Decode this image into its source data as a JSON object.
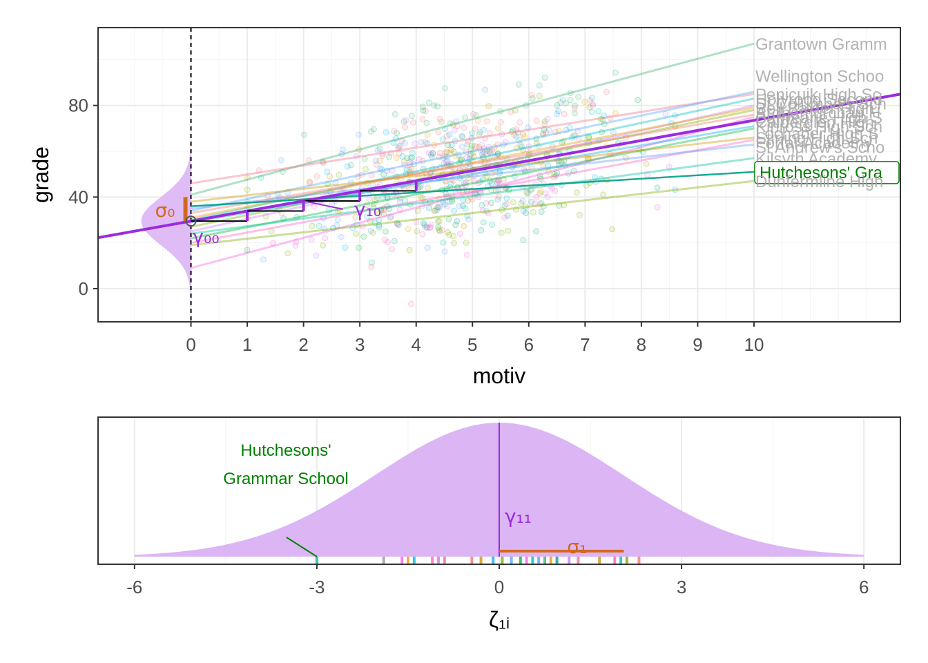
{
  "chart_data": [
    {
      "type": "scatter",
      "xlabel": "motiv",
      "ylabel": "grade",
      "xlim": [
        -1.65,
        12.6
      ],
      "ylim": [
        -14.5,
        114
      ],
      "x_ticks": [
        0,
        1,
        2,
        3,
        4,
        5,
        6,
        7,
        8,
        9,
        10
      ],
      "x_tick_labels": [
        "0",
        "1",
        "2",
        "3",
        "4",
        "5",
        "6",
        "7",
        "8",
        "9",
        "10"
      ],
      "y_ticks": [
        0,
        40,
        80
      ],
      "y_tick_labels": [
        "0",
        "40",
        "80"
      ],
      "grid": true,
      "fixed_line": {
        "intercept": 29.5,
        "slope": 4.4,
        "color": "#9a2be0"
      },
      "intercept_density": {
        "mean": 29.5,
        "sd": 10.5,
        "color": "#dcb5f5"
      },
      "school_lines": [
        {
          "intercept": 41,
          "slope": 6.6,
          "color": "#3cb371",
          "label": "Grantown Grammar School",
          "label_y": 107
        },
        {
          "intercept": 46,
          "slope": 3.9,
          "color": "#f0738a",
          "label": "Wellington School",
          "label_y": 93
        },
        {
          "intercept": 34,
          "slope": 5.2,
          "color": "#4fa8ff",
          "label": "Penicuik High School",
          "label_y": 85
        },
        {
          "intercept": 30,
          "slope": 5.3,
          "color": "#00bfc4",
          "label": "Holyrood Secondary School",
          "label_y": 83
        },
        {
          "intercept": 25,
          "slope": 5.5,
          "color": "#c77cff",
          "label": "St Columba's School",
          "label_y": 81
        },
        {
          "intercept": 31,
          "slope": 4.8,
          "color": "#e7a000",
          "label": "Bell Baxter High School",
          "label_y": 79
        },
        {
          "intercept": 27,
          "slope": 5.1,
          "color": "#7cae00",
          "label": "Ardnamurchan High School",
          "label_y": 77
        },
        {
          "intercept": 33,
          "slope": 4.3,
          "color": "#f8766d",
          "label": "Balwearie High School",
          "label_y": 75
        },
        {
          "intercept": 9,
          "slope": 6.6,
          "color": "#f564e3",
          "label": "Calderglen High School",
          "label_y": 73
        },
        {
          "intercept": 29,
          "slope": 4.2,
          "color": "#00b0f6",
          "label": "Kinross High School",
          "label_y": 71
        },
        {
          "intercept": 22,
          "slope": 4.8,
          "color": "#00ba38",
          "label": "Lochaber High School",
          "label_y": 68
        },
        {
          "intercept": 38,
          "slope": 2.8,
          "color": "#cd9600",
          "label": "Stirling High School",
          "label_y": 66
        },
        {
          "intercept": 20,
          "slope": 4.5,
          "color": "#ff61c3",
          "label": "Forfar Academy",
          "label_y": 64
        },
        {
          "intercept": 35,
          "slope": 2.8,
          "color": "#619cff",
          "label": "St Andrew's School",
          "label_y": 62
        },
        {
          "intercept": 24,
          "slope": 3.3,
          "color": "#00c19a",
          "label": "Kilsyth Academy",
          "label_y": 57
        },
        {
          "intercept": 36,
          "slope": 1.5,
          "color": "#00a087",
          "label": "Hutchesons' Grammar School",
          "label_y": 51
        },
        {
          "intercept": 19,
          "slope": 2.8,
          "color": "#7cae00",
          "label": "Dunfermline High School",
          "label_y": 47
        }
      ],
      "highlight_school": "Hutchesons' Grammar School",
      "highlight_color": "#008000",
      "labels_shown": {
        "Grantown Grammar School": "Grantown Gramm",
        "Wellington School": "Wellington Schoo",
        "Penicuik High School": "Penicuik High Sc",
        "Holyrood Secondary School": "Holyrood Second",
        "St Columba's School": "St Columba's Sch",
        "Bell Baxter High School": "Bell Baxter High",
        "Ardnamurchan High School": "Ardnamurchan H",
        "Balwearie High School": "Balwearie High S",
        "Calderglen High School": "Calderglen High",
        "Kinross High School": "Kinross High Sch",
        "Lochaber High School": "Lochaber High S",
        "Stirling High School": "Stirling High Sch",
        "Forfar Academy": "Forfar Academy",
        "St Andrew's School": "St Andrew's Scho",
        "Kilsyth Academy": "Kilsyth Academy",
        "Hutchesons' Grammar School": "Hutchesons' Gra",
        "Dunfermline High School": "Dunfermline High"
      },
      "annotations": {
        "sigma0": "σ₀",
        "gamma00": "γ₀₀",
        "gamma10": "γ₁₀",
        "sigma_color": "#d2691e",
        "gamma_color": "#9a2be0"
      }
    },
    {
      "type": "area",
      "xlabel": "ζ₁ᵢ",
      "xlim": [
        -6.6,
        6.6
      ],
      "x_ticks": [
        -6,
        -3,
        0,
        3,
        6
      ],
      "x_tick_labels": [
        "-6",
        "-3",
        "0",
        "3",
        "6"
      ],
      "density": {
        "mean": 0,
        "sd": 2.05,
        "from": -6,
        "to": 6,
        "color": "#dcb5f5"
      },
      "gamma11": "γ₁₁",
      "sigma1": "σ₁",
      "sigma1_value": 2.05,
      "highlight_label_lines": [
        "Hutchesons'",
        "Grammar School"
      ],
      "highlight_value": -3.0,
      "rug_values": [
        -3.0,
        -1.9,
        -1.6,
        -1.5,
        -1.4,
        -1.1,
        -1.0,
        -0.9,
        -0.45,
        -0.3,
        -0.1,
        0.05,
        0.2,
        0.35,
        0.45,
        0.55,
        0.65,
        0.75,
        0.85,
        0.95,
        1.15,
        1.3,
        1.65,
        1.9,
        2.0,
        2.1,
        2.3
      ],
      "rug_colors": [
        "#00c19a",
        "#999999",
        "#f564e3",
        "#e7a000",
        "#00bfc4",
        "#ff61c3",
        "#c77cff",
        "#f0738a",
        "#f8766d",
        "#cd9600",
        "#00b0f6",
        "#7cae00",
        "#4fa8ff",
        "#00ba38",
        "#f564e3",
        "#00bfc4",
        "#619cff",
        "#3cb371",
        "#e7a000",
        "#00a087",
        "#c77cff",
        "#f0738a",
        "#cd9600",
        "#ff61c3",
        "#00bfc4",
        "#7cae00",
        "#f8766d"
      ]
    }
  ]
}
